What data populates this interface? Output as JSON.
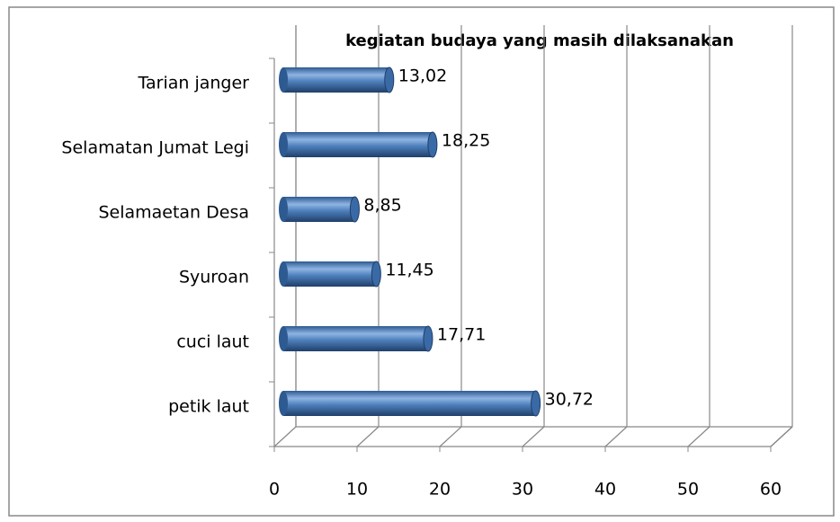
{
  "chart_data": {
    "type": "bar",
    "orientation": "horizontal",
    "title": "kegiatan budaya yang masih dilaksanakan",
    "categories": [
      "Tarian janger",
      "Selamatan Jumat Legi",
      "Selamaetan Desa",
      "Syuroan",
      "cuci laut",
      "petik laut"
    ],
    "values": [
      13.02,
      18.25,
      8.85,
      11.45,
      17.71,
      30.72
    ],
    "value_labels": [
      "13,02",
      "18,25",
      "8,85",
      "11,45",
      "17,71",
      "30,72"
    ],
    "color": "#4f81bd",
    "xlim": [
      0,
      60
    ],
    "xticks": [
      0,
      10,
      20,
      30,
      40,
      50,
      60
    ],
    "grid": true
  }
}
